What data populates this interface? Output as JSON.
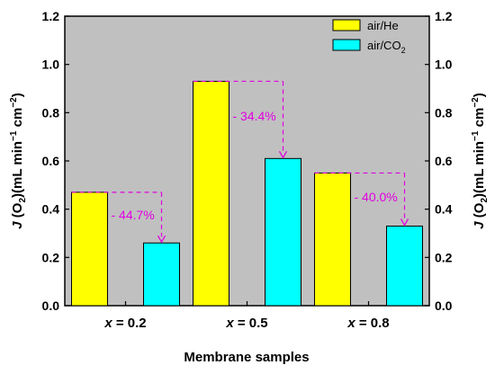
{
  "chart_data": {
    "type": "bar",
    "categories": [
      "x = 0.2",
      "x = 0.5",
      "x = 0.8"
    ],
    "category_var": "x",
    "category_vals": [
      "0.2",
      "0.5",
      "0.8"
    ],
    "series": [
      {
        "name": "air/He",
        "values": [
          0.47,
          0.93,
          0.55
        ],
        "color": "#ffff00"
      },
      {
        "name": "air/CO",
        "name_sub": "2",
        "values": [
          0.26,
          0.61,
          0.33
        ],
        "color": "#00ffff"
      }
    ],
    "xlabel": "Membrane samples",
    "ylabel": {
      "j": "J",
      "o": "(O",
      "o_sub": "2",
      "close": ")",
      "unit": "(mL min",
      "sup1": "−1",
      "cm": " cm",
      "sup2": "−2",
      "end": ")"
    },
    "ylim": [
      0,
      1.2
    ],
    "yticks": [
      "0.0",
      "0.2",
      "0.4",
      "0.6",
      "0.8",
      "1.0",
      "1.2"
    ],
    "annotations": [
      "- 44.7%",
      "- 34.4%",
      "- 40.0%"
    ],
    "annotation_color": "#e000e0",
    "plot_background": "#c0c0c0",
    "legend_position": "top-right",
    "grid": false
  }
}
